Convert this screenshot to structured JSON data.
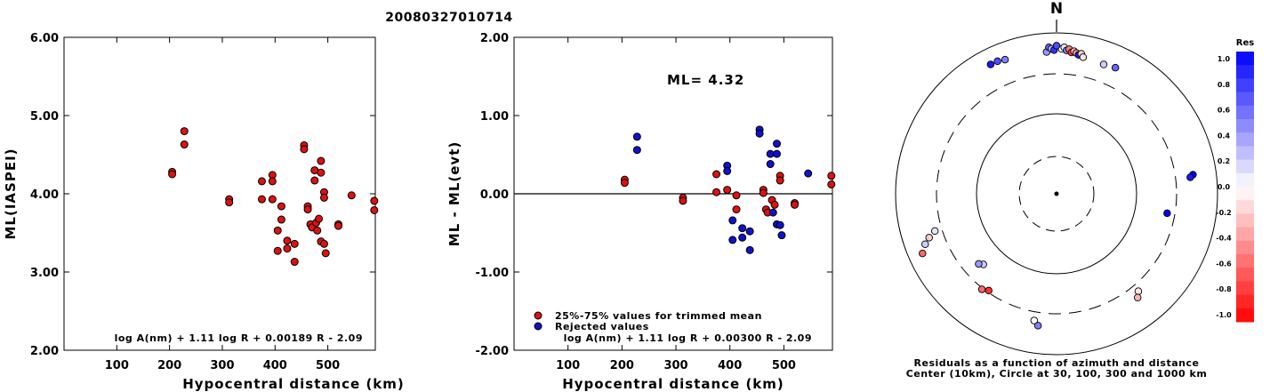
{
  "title": "20080327010714",
  "colors": {
    "red": "#dd1111",
    "blue": "#1111cc"
  },
  "left_chart": {
    "type": "scatter",
    "ylabel": "ML(IASPEI)",
    "xlabel": "Hypocentral distance (km)",
    "xlim": [
      0,
      590
    ],
    "ylim": [
      2.0,
      6.0
    ],
    "xticks": [
      100,
      200,
      300,
      400,
      500
    ],
    "yticks": [
      "2.00",
      "3.00",
      "4.00",
      "5.00",
      "6.00"
    ],
    "formula": "log A(nm) + 1.11 log R + 0.00189 R - 2.09",
    "points": [
      [
        205,
        4.28
      ],
      [
        205,
        4.25
      ],
      [
        228,
        4.8
      ],
      [
        228,
        4.63
      ],
      [
        313,
        3.93
      ],
      [
        313,
        3.89
      ],
      [
        375,
        4.16
      ],
      [
        375,
        3.93
      ],
      [
        395,
        4.24
      ],
      [
        395,
        4.16
      ],
      [
        395,
        3.93
      ],
      [
        405,
        3.53
      ],
      [
        405,
        3.27
      ],
      [
        412,
        3.84
      ],
      [
        412,
        3.67
      ],
      [
        423,
        3.4
      ],
      [
        423,
        3.3
      ],
      [
        437,
        3.36
      ],
      [
        437,
        3.13
      ],
      [
        455,
        4.62
      ],
      [
        455,
        4.57
      ],
      [
        462,
        3.84
      ],
      [
        462,
        3.8
      ],
      [
        467,
        3.61
      ],
      [
        470,
        3.57
      ],
      [
        475,
        4.3
      ],
      [
        475,
        4.17
      ],
      [
        478,
        3.63
      ],
      [
        480,
        3.53
      ],
      [
        483,
        3.68
      ],
      [
        487,
        4.42
      ],
      [
        487,
        4.27
      ],
      [
        487,
        3.39
      ],
      [
        493,
        4.02
      ],
      [
        493,
        3.95
      ],
      [
        493,
        3.36
      ],
      [
        496,
        3.24
      ],
      [
        520,
        3.61
      ],
      [
        520,
        3.59
      ],
      [
        545,
        3.98
      ],
      [
        588,
        3.91
      ],
      [
        588,
        3.79
      ]
    ]
  },
  "right_chart": {
    "type": "scatter",
    "ylabel": "ML - ML(evt)",
    "xlabel": "Hypocentral distance (km)",
    "xlim": [
      0,
      590
    ],
    "ylim": [
      -2.0,
      2.0
    ],
    "xticks": [
      100,
      200,
      300,
      400,
      500
    ],
    "yticks": [
      "-2.00",
      "-1.00",
      "0.00",
      "1.00",
      "2.00"
    ],
    "ml_label": "ML= 4.32",
    "legend": [
      "25%-75% values for trimmed mean",
      "Rejected values"
    ],
    "formula": "log A(nm) + 1.11 log R + 0.00300 R - 2.09",
    "points": [
      [
        205,
        0.18,
        "r"
      ],
      [
        205,
        0.14,
        "r"
      ],
      [
        228,
        0.73,
        "b"
      ],
      [
        228,
        0.56,
        "b"
      ],
      [
        313,
        -0.05,
        "r"
      ],
      [
        313,
        -0.09,
        "r"
      ],
      [
        375,
        0.25,
        "r"
      ],
      [
        375,
        0.02,
        "r"
      ],
      [
        395,
        0.36,
        "b"
      ],
      [
        395,
        0.29,
        "b"
      ],
      [
        395,
        0.05,
        "r"
      ],
      [
        405,
        -0.34,
        "b"
      ],
      [
        405,
        -0.59,
        "b"
      ],
      [
        412,
        -0.02,
        "r"
      ],
      [
        412,
        -0.2,
        "r"
      ],
      [
        423,
        -0.44,
        "b"
      ],
      [
        423,
        -0.56,
        "b"
      ],
      [
        437,
        -0.48,
        "b"
      ],
      [
        437,
        -0.72,
        "b"
      ],
      [
        455,
        0.82,
        "b"
      ],
      [
        455,
        0.77,
        "b"
      ],
      [
        462,
        0.05,
        "r"
      ],
      [
        462,
        0.01,
        "r"
      ],
      [
        467,
        -0.2,
        "r"
      ],
      [
        470,
        -0.24,
        "r"
      ],
      [
        475,
        0.51,
        "b"
      ],
      [
        475,
        0.38,
        "b"
      ],
      [
        478,
        -0.08,
        "r"
      ],
      [
        480,
        -0.24,
        "b"
      ],
      [
        483,
        -0.14,
        "r"
      ],
      [
        487,
        0.64,
        "b"
      ],
      [
        487,
        0.51,
        "b"
      ],
      [
        487,
        -0.39,
        "b"
      ],
      [
        493,
        0.23,
        "r"
      ],
      [
        493,
        0.17,
        "r"
      ],
      [
        493,
        -0.4,
        "b"
      ],
      [
        496,
        -0.53,
        "b"
      ],
      [
        520,
        -0.12,
        "r"
      ],
      [
        520,
        -0.14,
        "r"
      ],
      [
        545,
        0.26,
        "b"
      ],
      [
        588,
        0.23,
        "r"
      ],
      [
        588,
        0.12,
        "r"
      ]
    ]
  },
  "polar": {
    "north_label": "N",
    "caption1": "Residuals as a function of azimuth and distance",
    "caption2": "Center (10km), Circle at 30, 100, 300 and 1000 km",
    "points": [
      [
        -4,
        0.95,
        0.4
      ],
      [
        -3,
        0.98,
        0.6
      ],
      [
        -2,
        0.97,
        0.3
      ],
      [
        -1,
        0.96,
        0.8
      ],
      [
        2,
        0.97,
        0.0
      ],
      [
        3,
        0.98,
        0.1
      ],
      [
        4,
        0.96,
        0.5
      ],
      [
        5,
        0.97,
        -0.5
      ],
      [
        6,
        0.95,
        -0.8
      ],
      [
        7,
        0.96,
        -0.3
      ],
      [
        8,
        0.95,
        -0.4
      ],
      [
        9,
        0.94,
        0.9
      ],
      [
        10,
        0.95,
        -0.2
      ],
      [
        11,
        0.93,
        -0.1
      ],
      [
        20,
        0.92,
        0.2
      ],
      [
        25,
        0.93,
        0.6
      ],
      [
        0,
        0.99,
        0.7
      ],
      [
        82,
        0.92,
        1.0
      ],
      [
        83,
        0.9,
        0.9
      ],
      [
        100,
        0.75,
        1.0
      ],
      [
        140,
        0.85,
        -0.1
      ],
      [
        142,
        0.88,
        -0.3
      ],
      [
        190,
        0.86,
        0.0
      ],
      [
        188,
        0.89,
        0.5
      ],
      [
        215,
        0.79,
        -0.8
      ],
      [
        218,
        0.81,
        -0.6
      ],
      [
        226,
        0.68,
        0.2
      ],
      [
        228,
        0.7,
        0.4
      ],
      [
        246,
        0.98,
        -0.6
      ],
      [
        249,
        0.94,
        0.2
      ],
      [
        251,
        0.9,
        -0.2
      ],
      [
        253,
        0.85,
        0.1
      ],
      [
        -21,
        0.96,
        0.5
      ],
      [
        -24,
        0.97,
        0.7
      ],
      [
        -27,
        0.97,
        0.9
      ]
    ]
  },
  "colorbar": {
    "title": "Res",
    "labels": [
      "1.0",
      "0.8",
      "0.6",
      "0.4",
      "0.2",
      "0.0",
      "-0.2",
      "-0.4",
      "-0.6",
      "-0.8",
      "-1.0"
    ]
  }
}
